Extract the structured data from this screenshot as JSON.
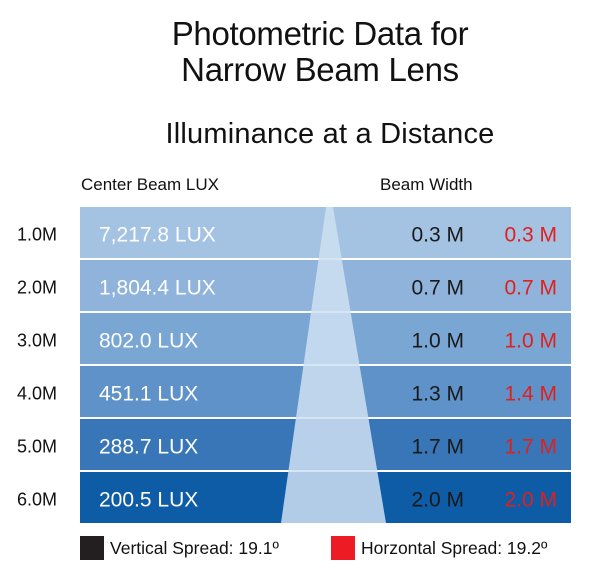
{
  "chart_data": {
    "type": "table",
    "title": [
      "Photometric Data for",
      "Narrow Beam Lens"
    ],
    "subtitle": "Illuminance at a Distance",
    "columns": {
      "lux": "Center Beam LUX",
      "width": "Beam Width"
    },
    "rows": [
      {
        "distance": "1.0M",
        "lux": "7,217.8 LUX",
        "vertical": "0.3 M",
        "horizontal": "0.3 M"
      },
      {
        "distance": "2.0M",
        "lux": "1,804.4 LUX",
        "vertical": "0.7 M",
        "horizontal": "0.7 M"
      },
      {
        "distance": "3.0M",
        "lux": "802.0 LUX",
        "vertical": "1.0 M",
        "horizontal": "1.0 M"
      },
      {
        "distance": "4.0M",
        "lux": "451.1 LUX",
        "vertical": "1.3 M",
        "horizontal": "1.4 M"
      },
      {
        "distance": "5.0M",
        "lux": "288.7 LUX",
        "vertical": "1.7 M",
        "horizontal": "1.7 M"
      },
      {
        "distance": "6.0M",
        "lux": "200.5 LUX",
        "vertical": "2.0 M",
        "horizontal": "2.0 M"
      }
    ],
    "legend": [
      {
        "label": "Vertical Spread: 19.1º",
        "color": "#231f20"
      },
      {
        "label": "Horzontal Spread: 19.2º",
        "color": "#ed1c24"
      }
    ],
    "row_colors": [
      "#a4c2e2",
      "#8fb3da",
      "#7aa6d3",
      "#5e92c8",
      "#3876b8",
      "#0e5ba6"
    ],
    "beam_color": "#cfe1f2",
    "vertical_text_color": "#1a1a1a",
    "horizontal_text_color": "#e0201d"
  }
}
